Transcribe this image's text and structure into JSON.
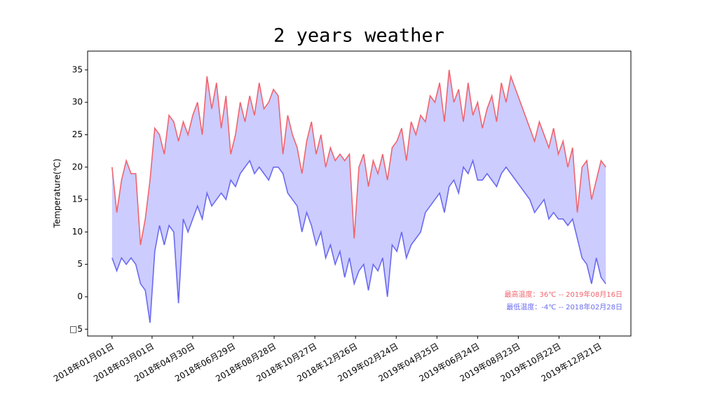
{
  "chart_data": {
    "type": "line",
    "title": "2 years weather",
    "y_label": "Temperature(℃)",
    "x": [
      "2018-01-01",
      "2018-01-08",
      "2018-01-15",
      "2018-01-22",
      "2018-01-29",
      "2018-02-05",
      "2018-02-12",
      "2018-02-19",
      "2018-02-26",
      "2018-03-05",
      "2018-03-12",
      "2018-03-19",
      "2018-03-26",
      "2018-04-02",
      "2018-04-09",
      "2018-04-16",
      "2018-04-23",
      "2018-04-30",
      "2018-05-07",
      "2018-05-14",
      "2018-05-21",
      "2018-05-28",
      "2018-06-04",
      "2018-06-11",
      "2018-06-18",
      "2018-06-25",
      "2018-07-02",
      "2018-07-09",
      "2018-07-16",
      "2018-07-23",
      "2018-07-30",
      "2018-08-06",
      "2018-08-13",
      "2018-08-20",
      "2018-08-27",
      "2018-09-03",
      "2018-09-10",
      "2018-09-17",
      "2018-09-24",
      "2018-10-01",
      "2018-10-08",
      "2018-10-15",
      "2018-10-22",
      "2018-10-29",
      "2018-11-05",
      "2018-11-12",
      "2018-11-19",
      "2018-11-26",
      "2018-12-03",
      "2018-12-10",
      "2018-12-17",
      "2018-12-24",
      "2018-12-31",
      "2019-01-07",
      "2019-01-14",
      "2019-01-21",
      "2019-01-28",
      "2019-02-04",
      "2019-02-11",
      "2019-02-18",
      "2019-02-25",
      "2019-03-04",
      "2019-03-11",
      "2019-03-18",
      "2019-03-25",
      "2019-04-01",
      "2019-04-08",
      "2019-04-15",
      "2019-04-22",
      "2019-04-29",
      "2019-05-06",
      "2019-05-13",
      "2019-05-20",
      "2019-05-27",
      "2019-06-03",
      "2019-06-10",
      "2019-06-17",
      "2019-06-24",
      "2019-07-01",
      "2019-07-08",
      "2019-07-15",
      "2019-07-22",
      "2019-07-29",
      "2019-08-05",
      "2019-08-12",
      "2019-08-19",
      "2019-08-26",
      "2019-09-02",
      "2019-09-09",
      "2019-09-16",
      "2019-09-23",
      "2019-09-30",
      "2019-10-07",
      "2019-10-14",
      "2019-10-21",
      "2019-10-28",
      "2019-11-04",
      "2019-11-11",
      "2019-11-18",
      "2019-11-25",
      "2019-12-02",
      "2019-12-09",
      "2019-12-16",
      "2019-12-23",
      "2019-12-30"
    ],
    "series": [
      {
        "color": "#f0646e",
        "values": [
          20,
          13,
          18,
          21,
          19,
          19,
          8,
          12,
          18,
          26,
          25,
          22,
          28,
          27,
          24,
          27,
          25,
          28,
          30,
          25,
          34,
          29,
          33,
          26,
          31,
          22,
          25,
          30,
          27,
          31,
          28,
          33,
          29,
          30,
          32,
          31,
          22,
          28,
          25,
          23,
          19,
          24,
          27,
          22,
          25,
          20,
          23,
          21,
          22,
          21,
          22,
          9,
          20,
          22,
          17,
          21,
          19,
          22,
          18,
          23,
          24,
          26,
          21,
          27,
          25,
          28,
          27,
          31,
          30,
          33,
          27,
          35,
          30,
          32,
          27,
          33,
          28,
          30,
          26,
          29,
          31,
          27,
          33,
          30,
          34,
          32,
          30,
          28,
          26,
          24,
          27,
          25,
          23,
          26,
          22,
          24,
          20,
          23,
          13,
          20,
          21,
          15,
          18,
          21,
          20
        ]
      },
      {
        "color": "#6a6af0",
        "values": [
          6,
          4,
          6,
          5,
          6,
          5,
          2,
          1,
          -4,
          7,
          11,
          8,
          11,
          10,
          -1,
          12,
          10,
          12,
          14,
          12,
          16,
          14,
          15,
          16,
          15,
          18,
          17,
          19,
          20,
          21,
          19,
          20,
          19,
          18,
          20,
          20,
          19,
          16,
          15,
          14,
          10,
          13,
          11,
          8,
          10,
          6,
          8,
          5,
          7,
          3,
          6,
          2,
          4,
          5,
          1,
          5,
          4,
          6,
          0,
          8,
          7,
          10,
          6,
          8,
          9,
          10,
          13,
          14,
          15,
          16,
          13,
          17,
          18,
          16,
          20,
          19,
          21,
          18,
          18,
          19,
          18,
          17,
          19,
          20,
          19,
          18,
          17,
          16,
          15,
          13,
          14,
          15,
          12,
          13,
          12,
          12,
          11,
          12,
          9,
          6,
          5,
          2,
          6,
          3,
          2
        ]
      }
    ],
    "fill_between": "#ccccff",
    "annotations": [
      "最高温度：36℃ -- 2019年08月16日",
      "最低温度：-4℃ -- 2018年02月28日"
    ],
    "xlim": [
      "2017-11-26",
      "2020-02-05"
    ],
    "xticks": [
      {
        "value": "2018-01-01",
        "label": "2018年01月01日"
      },
      {
        "value": "2018-03-01",
        "label": "2018年03月01日"
      },
      {
        "value": "2018-04-30",
        "label": "2018年04月30日"
      },
      {
        "value": "2018-06-29",
        "label": "2018年06月29日"
      },
      {
        "value": "2018-08-28",
        "label": "2018年08月28日"
      },
      {
        "value": "2018-10-27",
        "label": "2018年10月27日"
      },
      {
        "value": "2018-12-26",
        "label": "2018年12月26日"
      },
      {
        "value": "2019-02-24",
        "label": "2019年02月24日"
      },
      {
        "value": "2019-04-25",
        "label": "2019年04月25日"
      },
      {
        "value": "2019-06-24",
        "label": "2019年06月24日"
      },
      {
        "value": "2019-08-23",
        "label": "2019年08月23日"
      },
      {
        "value": "2019-10-22",
        "label": "2019年10月22日"
      },
      {
        "value": "2019-12-21",
        "label": "2019年12月21日"
      }
    ],
    "ylim": [
      -6.05,
      37.9
    ],
    "yticks": [
      {
        "value": -5,
        "label": "□5"
      },
      0,
      5,
      10,
      15,
      20,
      25,
      30,
      35
    ]
  }
}
